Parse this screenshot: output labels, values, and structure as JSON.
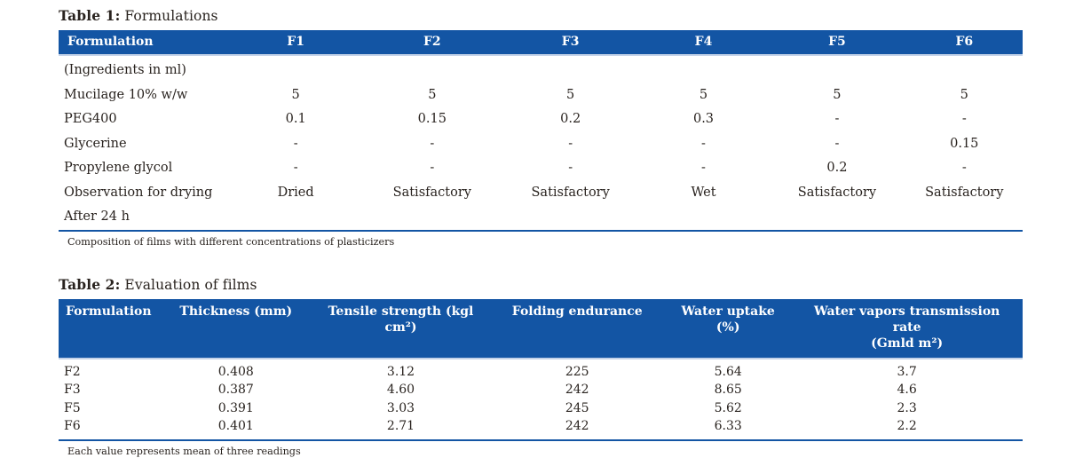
{
  "colors": {
    "header_bar_blue": "#1355A4",
    "header_text": "#ffffff",
    "body_text": "#29231f",
    "bottom_rule_blue": "#1355A4"
  },
  "table1": {
    "title_label": "Table 1:",
    "title_text": " Formulations",
    "columns": [
      "Formulation",
      "F1",
      "F2",
      "F3",
      "F4",
      "F5",
      "F6"
    ],
    "rows": [
      [
        "(Ingredients in ml)",
        "",
        "",
        "",
        "",
        "",
        ""
      ],
      [
        "Mucilage 10% w/w",
        "5",
        "5",
        "5",
        "5",
        "5",
        "5"
      ],
      [
        "PEG400",
        "0.1",
        "0.15",
        "0.2",
        "0.3",
        "-",
        "-"
      ],
      [
        "Glycerine",
        "-",
        "-",
        "-",
        "-",
        "-",
        "0.15"
      ],
      [
        "Propylene glycol",
        "-",
        "-",
        "-",
        "-",
        "0.2",
        "-"
      ],
      [
        "Observation for drying",
        "Dried",
        "Satisfactory",
        "Satisfactory",
        "Wet",
        "Satisfactory",
        "Satisfactory"
      ],
      [
        "After 24 h",
        "",
        "",
        "",
        "",
        "",
        ""
      ]
    ],
    "footnote": "Composition of films with different concentrations of plasticizers"
  },
  "table2": {
    "title_label": "Table 2:",
    "title_text": " Evaluation of films",
    "columns": [
      "Formulation",
      "Thickness (mm)",
      "Tensile strength (kgl cm²)",
      "Folding endurance",
      "Water uptake (%)",
      "Water vapors transmission rate\n(Gmld m²)"
    ],
    "rows": [
      [
        "F2",
        "0.408",
        "3.12",
        "225",
        "5.64",
        "3.7"
      ],
      [
        "F3",
        "0.387",
        "4.60",
        "242",
        "8.65",
        "4.6"
      ],
      [
        "F5",
        "0.391",
        "3.03",
        "245",
        "5.62",
        "2.3"
      ],
      [
        "F6",
        "0.401",
        "2.71",
        "242",
        "6.33",
        "2.2"
      ]
    ],
    "footnote": "Each value represents mean of three readings"
  }
}
